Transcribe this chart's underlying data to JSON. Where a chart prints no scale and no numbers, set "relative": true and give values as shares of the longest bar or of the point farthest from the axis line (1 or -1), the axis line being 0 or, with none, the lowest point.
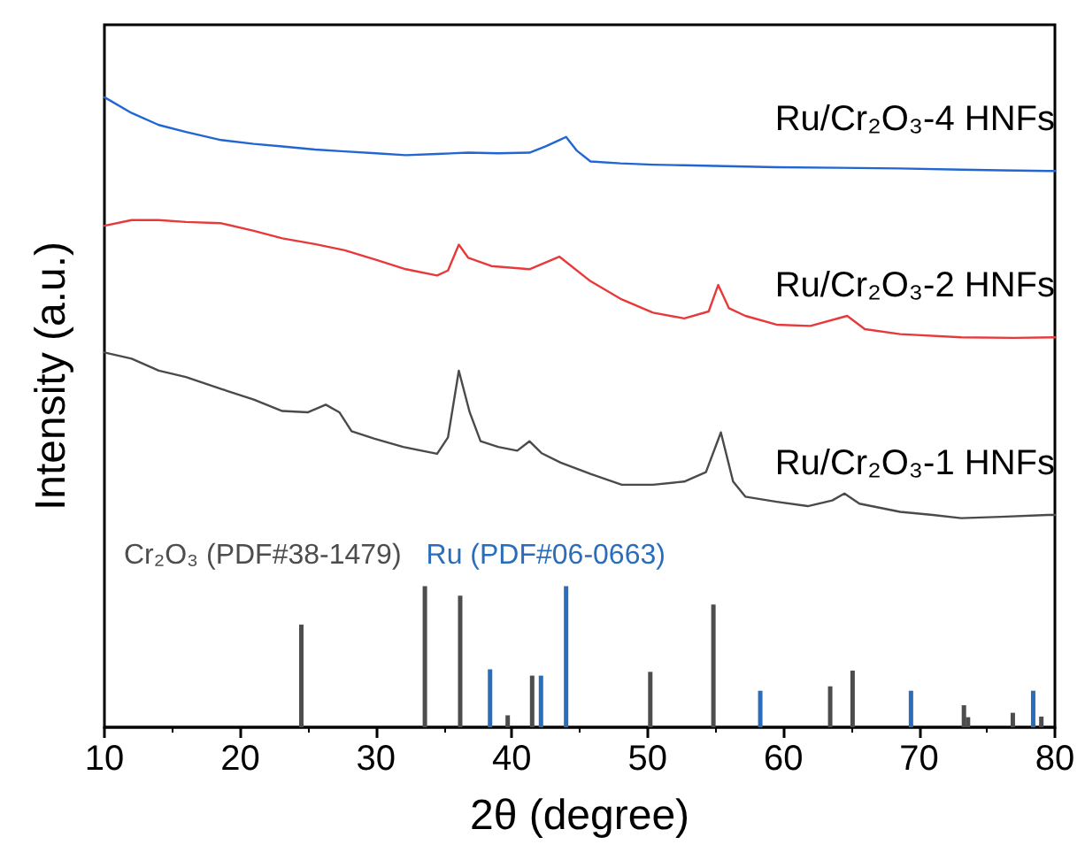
{
  "chart_data": {
    "type": "line",
    "xlabel": "2θ (degree)",
    "ylabel": "Intensity (a.u.)",
    "relative": true,
    "xlim": [
      10,
      80
    ],
    "xticks": [
      10,
      20,
      30,
      40,
      50,
      60,
      70,
      80
    ],
    "grid": false,
    "legend": false,
    "marker": "none",
    "line_style": "solid",
    "series": [
      {
        "name": "Ru/Cr₂O₃-4 HNFs",
        "color": "#2166d3",
        "x": [
          10,
          12,
          14,
          16,
          18.6,
          21,
          23.1,
          25.5,
          27.7,
          30,
          32.2,
          34.5,
          36.8,
          39,
          41.3,
          42.5,
          43.5,
          44.0,
          44.8,
          45.8,
          48,
          50.4,
          52.6,
          54.9,
          59.5,
          64,
          68.5,
          73.1,
          76,
          79.5,
          80
        ],
        "values": [
          1.0,
          0.975,
          0.956,
          0.945,
          0.932,
          0.926,
          0.922,
          0.917,
          0.914,
          0.911,
          0.908,
          0.91,
          0.912,
          0.911,
          0.912,
          0.922,
          0.932,
          0.937,
          0.915,
          0.898,
          0.895,
          0.893,
          0.892,
          0.891,
          0.889,
          0.888,
          0.887,
          0.885,
          0.884,
          0.883,
          0.883
        ]
      },
      {
        "name": "Ru/Cr₂O₃-2 HNFs",
        "color": "#e8393a",
        "x": [
          10,
          12,
          14,
          16,
          18.6,
          21,
          23.1,
          25.5,
          27.7,
          30,
          32.2,
          34.5,
          35.3,
          36.1,
          36.8,
          38.5,
          41.3,
          43.5,
          45.8,
          48.1,
          50.4,
          52.7,
          54.5,
          55.2,
          56,
          57.2,
          59.5,
          62,
          64.7,
          66,
          68.6,
          73.1,
          77,
          80
        ],
        "values": [
          0.796,
          0.805,
          0.805,
          0.802,
          0.8,
          0.788,
          0.776,
          0.767,
          0.757,
          0.742,
          0.727,
          0.717,
          0.725,
          0.766,
          0.745,
          0.732,
          0.727,
          0.747,
          0.708,
          0.679,
          0.658,
          0.649,
          0.66,
          0.702,
          0.665,
          0.653,
          0.639,
          0.637,
          0.653,
          0.632,
          0.624,
          0.619,
          0.618,
          0.619
        ]
      },
      {
        "name": "Ru/Cr₂O₃-1 HNFs",
        "color": "#4a4a4a",
        "x": [
          10,
          12,
          14,
          16,
          18.6,
          21,
          23.1,
          25,
          26.3,
          27.3,
          28.2,
          29.9,
          32,
          34.5,
          35.3,
          36.1,
          36.9,
          37.7,
          39,
          40.4,
          41.3,
          42.2,
          43.6,
          45.8,
          48.1,
          50.4,
          52.7,
          54.3,
          55.4,
          56.3,
          57.2,
          59.5,
          61.8,
          63.6,
          64.5,
          65.6,
          68.6,
          71,
          73.1,
          76,
          79.5,
          80
        ],
        "values": [
          0.595,
          0.585,
          0.566,
          0.556,
          0.537,
          0.52,
          0.502,
          0.5,
          0.512,
          0.5,
          0.47,
          0.458,
          0.445,
          0.434,
          0.46,
          0.566,
          0.5,
          0.454,
          0.445,
          0.439,
          0.454,
          0.435,
          0.42,
          0.402,
          0.385,
          0.385,
          0.39,
          0.405,
          0.468,
          0.39,
          0.366,
          0.358,
          0.351,
          0.36,
          0.371,
          0.355,
          0.342,
          0.337,
          0.332,
          0.334,
          0.337,
          0.337
        ]
      },
      {
        "name": "Cr₂O₃ (PDF#38-1479)",
        "type": "bar",
        "color": "#4d4d4d",
        "x": [
          24.5,
          33.6,
          36.2,
          39.7,
          41.5,
          50.2,
          54.85,
          63.45,
          65.1,
          73.3,
          73.6,
          76.9,
          79.0
        ],
        "values": [
          0.163,
          0.224,
          0.209,
          0.019,
          0.082,
          0.088,
          0.195,
          0.065,
          0.09,
          0.035,
          0.016,
          0.023,
          0.017
        ]
      },
      {
        "name": "Ru (PDF#06-0663)",
        "type": "bar",
        "color": "#2a6ebb",
        "x": [
          38.4,
          42.15,
          44.0,
          58.3,
          69.4,
          78.4
        ],
        "values": [
          0.092,
          0.082,
          0.224,
          0.058,
          0.058,
          0.058
        ]
      }
    ]
  }
}
